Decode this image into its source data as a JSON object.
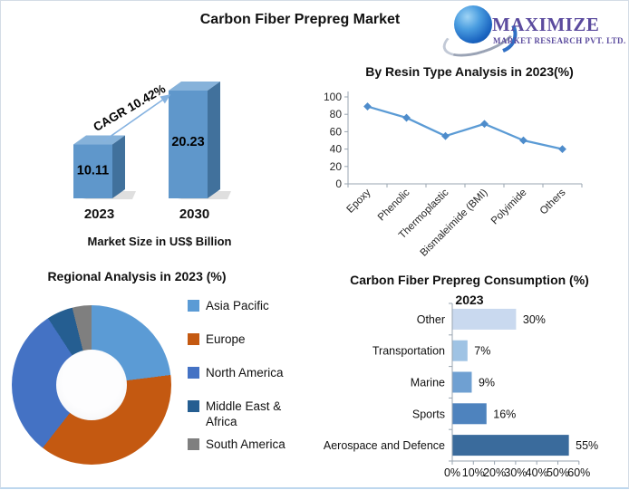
{
  "header": {
    "title": "Carbon Fiber Prepreg Market",
    "logo": {
      "brand": "MAXIMIZE",
      "subtitle": "MARKET RESEARCH PVT. LTD.",
      "brand_color": "#5b4b9e"
    }
  },
  "chart_data": [
    {
      "type": "bar",
      "style": "3d",
      "title": "Market Size in US$ Billion",
      "categories": [
        "2023",
        "2030"
      ],
      "values": [
        10.11,
        20.23
      ],
      "value_labels": [
        "10.11",
        "20.23"
      ],
      "annotation": "CAGR 10.42%",
      "ylim": [
        0,
        20.23
      ],
      "colors": {
        "front": "#5f97cb",
        "top": "#86b2da",
        "side": "#41719c",
        "arrow": "#85b2e0",
        "label": "#000000"
      }
    },
    {
      "type": "line",
      "title": "By Resin Type Analysis in  2023(%)",
      "categories": [
        "Epoxy",
        "Phenolic",
        "Thermoplastic",
        "Bismaleimide (BMI)",
        "Polyimide",
        "Others"
      ],
      "values": [
        89,
        76,
        55,
        69,
        50,
        40
      ],
      "ylim": [
        0,
        100
      ],
      "yticks": [
        0,
        20,
        40,
        60,
        80,
        100
      ],
      "grid": false,
      "legend_position": "none",
      "colors": {
        "line": "#5b9bd5",
        "marker": "#4e8ccb",
        "axis": "#9aa5b1"
      },
      "marker": "diamond"
    },
    {
      "type": "pie",
      "subtype": "donut",
      "title": "Regional Analysis in 2023 (%)",
      "labels": [
        "Asia Pacific",
        "Europe",
        "North America",
        "Middle East & Africa",
        "South America"
      ],
      "values": [
        23,
        37.5,
        30.3,
        5.3,
        3.9
      ],
      "colors": [
        "#5b9bd5",
        "#c45911",
        "#4472c4",
        "#255e91",
        "#7f7f7f"
      ],
      "legend_position": "right"
    },
    {
      "type": "bar",
      "orientation": "horizontal",
      "title": "Carbon Fiber Prepreg Consumption (%) 2023",
      "categories": [
        "Other",
        "Transportation",
        "Marine",
        "Sports",
        "Aerospace and Defence"
      ],
      "values": [
        30,
        7,
        9,
        16,
        55
      ],
      "value_labels": [
        "30%",
        "7%",
        "9%",
        "16%",
        "55%"
      ],
      "xlim": [
        0,
        60
      ],
      "xticks": [
        "0%",
        "10%",
        "20%",
        "30%",
        "40%",
        "50%",
        "60%"
      ],
      "colors": [
        "#c9d9ef",
        "#9fc3e4",
        "#6fa0d2",
        "#4e83be",
        "#3a6b9c"
      ],
      "axis_color": "#9aa5b1"
    }
  ]
}
